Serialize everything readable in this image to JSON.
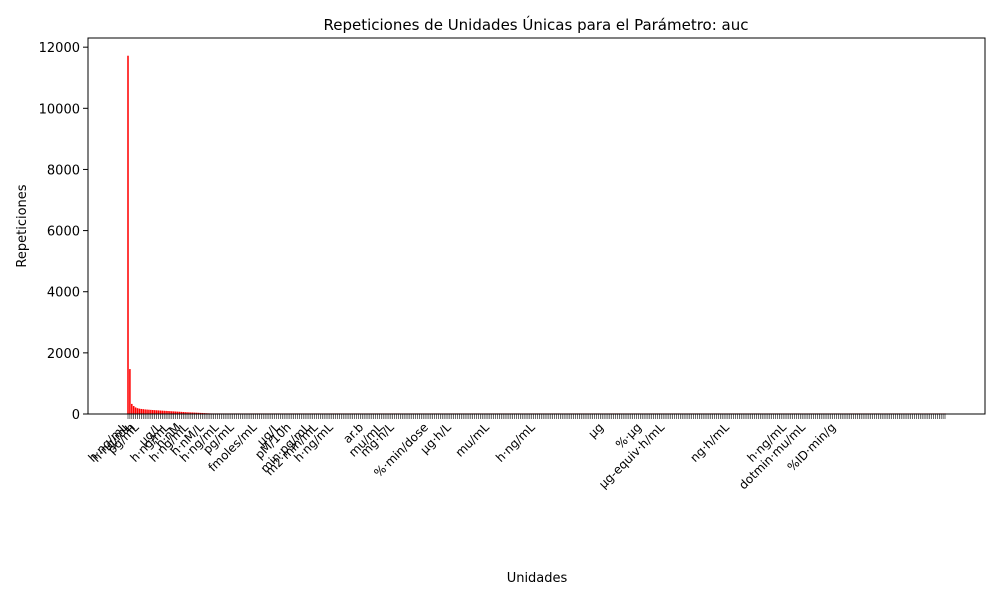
{
  "chart_data": {
    "type": "bar",
    "title": "Repeticiones de Unidades Únicas para el Parámetro: auc",
    "xlabel": "Unidades",
    "ylabel": "Repeticiones",
    "ylim": [
      0,
      12300
    ],
    "yticks": [
      0,
      2000,
      4000,
      6000,
      8000,
      10000,
      12000
    ],
    "bar_color": "#ff0000",
    "category_count": 430,
    "values_head": [
      11720,
      1470,
      330,
      260,
      215,
      190,
      175,
      165,
      158,
      150,
      145,
      140,
      135,
      130,
      126,
      122,
      118,
      114,
      110,
      106,
      102,
      98,
      94,
      90,
      86,
      82,
      78,
      74,
      70,
      66,
      62,
      58,
      55,
      52,
      49,
      46,
      43,
      40,
      37,
      34,
      31,
      28,
      25,
      22,
      20,
      18,
      16,
      14,
      12,
      10
    ],
    "values_tail": 1,
    "visible_tick_labels": [
      {
        "index": 0,
        "text": "h·ng/mL"
      },
      {
        "index": 2,
        "text": "h·ng/mL"
      },
      {
        "index": 4,
        "text": "h"
      },
      {
        "index": 6,
        "text": "pg/mL"
      },
      {
        "index": 18,
        "text": "µg/L"
      },
      {
        "index": 22,
        "text": "h·ng/mL"
      },
      {
        "index": 28,
        "text": "h·nM"
      },
      {
        "index": 32,
        "text": "h·ng/mL"
      },
      {
        "index": 40,
        "text": "h·nM/L"
      },
      {
        "index": 48,
        "text": "h·ng/mL"
      },
      {
        "index": 56,
        "text": "pg/mL"
      },
      {
        "index": 68,
        "text": "fmoles/mL"
      },
      {
        "index": 80,
        "text": "µg/L"
      },
      {
        "index": 86,
        "text": "pM/10h"
      },
      {
        "index": 96,
        "text": "min·pg/mL"
      },
      {
        "index": 100,
        "text": "m2·min/mL"
      },
      {
        "index": 108,
        "text": "h·ng/mL"
      },
      {
        "index": 124,
        "text": "ar.b"
      },
      {
        "index": 134,
        "text": "mu/mL"
      },
      {
        "index": 140,
        "text": "mg·h/L"
      },
      {
        "index": 158,
        "text": "%·min/dose"
      },
      {
        "index": 170,
        "text": "µg·h/L"
      },
      {
        "index": 190,
        "text": "mu/mL"
      },
      {
        "index": 214,
        "text": "h·ng/mL"
      },
      {
        "index": 250,
        "text": "µg"
      },
      {
        "index": 270,
        "text": "%·µg"
      },
      {
        "index": 282,
        "text": "µg-equiv·h/mL"
      },
      {
        "index": 316,
        "text": "ng·h/mL"
      },
      {
        "index": 346,
        "text": "h·ng/mL"
      },
      {
        "index": 356,
        "text": "dotmin·mu/mL"
      },
      {
        "index": 372,
        "text": "%ID·min/g"
      }
    ]
  }
}
